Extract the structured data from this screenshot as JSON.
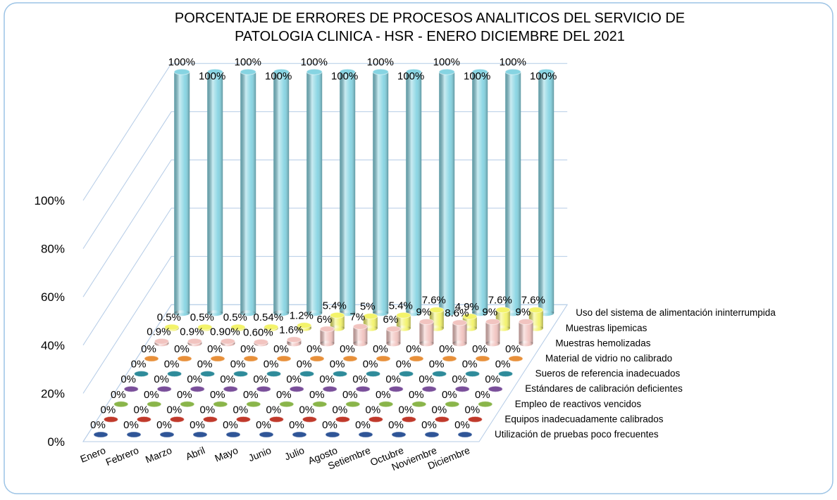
{
  "chart_data": {
    "type": "bar3d",
    "title": [
      "PORCENTAJE DE ERRORES DE PROCESOS ANALITICOS DEL SERVICIO DE",
      "PATOLOGIA CLINICA - HSR - ENERO DICIEMBRE DEL 2021"
    ],
    "categories": [
      "Enero",
      "Febrero",
      "Marzo",
      "Abril",
      "Mayo",
      "Junio",
      "Julio",
      "Agosto",
      "Setiembre",
      "Octubre",
      "Noviembre",
      "Diciembre"
    ],
    "ylim": [
      0,
      100
    ],
    "yticks": [
      {
        "value": 0,
        "label": "0%"
      },
      {
        "value": 20,
        "label": "20%"
      },
      {
        "value": 40,
        "label": "40%"
      },
      {
        "value": 60,
        "label": "60%"
      },
      {
        "value": 80,
        "label": "80%"
      },
      {
        "value": 100,
        "label": "100%"
      }
    ],
    "grid": true,
    "series": [
      {
        "name": "Utilización de pruebas poco frecuentes",
        "color": "#2f5597",
        "values": [
          0,
          0,
          0,
          0,
          0,
          0,
          0,
          0,
          0,
          0,
          0,
          0
        ],
        "value_labels": [
          "0%",
          "0%",
          "0%",
          "0%",
          "0%",
          "0%",
          "0%",
          "0%",
          "0%",
          "0%",
          "0%",
          "0%"
        ]
      },
      {
        "name": "Equipos inadecuadamente calibrados",
        "color": "#c0392b",
        "values": [
          0,
          0,
          0,
          0,
          0,
          0,
          0,
          0,
          0,
          0,
          0,
          0
        ],
        "value_labels": [
          "0%",
          "0%",
          "0%",
          "0%",
          "0%",
          "0%",
          "0%",
          "0%",
          "0%",
          "0%",
          "0%",
          "0%"
        ]
      },
      {
        "name": "Empleo de reactivos vencidos",
        "color": "#8ab54a",
        "values": [
          0,
          0,
          0,
          0,
          0,
          0,
          0,
          0,
          0,
          0,
          0,
          0
        ],
        "value_labels": [
          "0%",
          "0%",
          "0%",
          "0%",
          "0%",
          "0%",
          "0%",
          "0%",
          "0%",
          "0%",
          "0%",
          "0%"
        ]
      },
      {
        "name": "Estándares de calibración deficientes",
        "color": "#7a4f9a",
        "values": [
          0,
          0,
          0,
          0,
          0,
          0,
          0,
          0,
          0,
          0,
          0,
          0
        ],
        "value_labels": [
          "0%",
          "0%",
          "0%",
          "0%",
          "0%",
          "0%",
          "0%",
          "0%",
          "0%",
          "0%",
          "0%",
          "0%"
        ]
      },
      {
        "name": "Sueros de referencia inadecuados",
        "color": "#2e8b9a",
        "values": [
          0,
          0,
          0,
          0,
          0,
          0,
          0,
          0,
          0,
          0,
          0,
          0
        ],
        "value_labels": [
          "0%",
          "0%",
          "0%",
          "0%",
          "0%",
          "0%",
          "0%",
          "0%",
          "0%",
          "0%",
          "0%",
          "0%"
        ]
      },
      {
        "name": "Material de vidrio no calibrado",
        "color": "#e8903a",
        "values": [
          0,
          0,
          0,
          0,
          0,
          0,
          0,
          0,
          0,
          0,
          0,
          0
        ],
        "value_labels": [
          "0%",
          "0%",
          "0%",
          "0%",
          "0%",
          "0%",
          "0%",
          "0%",
          "0%",
          "0%",
          "0%",
          "0%"
        ]
      },
      {
        "name": "Muestras hemolizadas",
        "color": "#f2c4c0",
        "values": [
          0.9,
          0.9,
          0.9,
          0.6,
          1.6,
          6,
          7,
          6,
          9,
          8.6,
          9,
          9
        ],
        "value_labels": [
          "0.9%",
          "0.9%",
          "0.90%",
          "0.60%",
          "1.6%",
          "6%",
          "7%",
          "6%",
          "9%",
          "8.6%",
          "9%",
          "9%"
        ]
      },
      {
        "name": "Muestras lipemicas",
        "color": "#f3f36a",
        "values": [
          0.5,
          0.5,
          0.5,
          0.54,
          1.2,
          5.4,
          5,
          5.4,
          7.6,
          4.9,
          7.6,
          7.6
        ],
        "value_labels": [
          "0.5%",
          "0.5%",
          "0.5%",
          "0.54%",
          "1.2%",
          "5.4%",
          "5%",
          "5.4%",
          "7.6%",
          "4.9%",
          "7.6%",
          "7.6%"
        ]
      },
      {
        "name": "Uso del sistema de alimentación ininterrumpida",
        "color": "#86d4e2",
        "values": [
          100,
          100,
          100,
          100,
          100,
          100,
          100,
          100,
          100,
          100,
          100,
          100
        ],
        "value_labels": [
          "100%",
          "100%",
          "100%",
          "100%",
          "100%",
          "100%",
          "100%",
          "100%",
          "100%",
          "100%",
          "100%",
          "100%"
        ]
      }
    ]
  }
}
